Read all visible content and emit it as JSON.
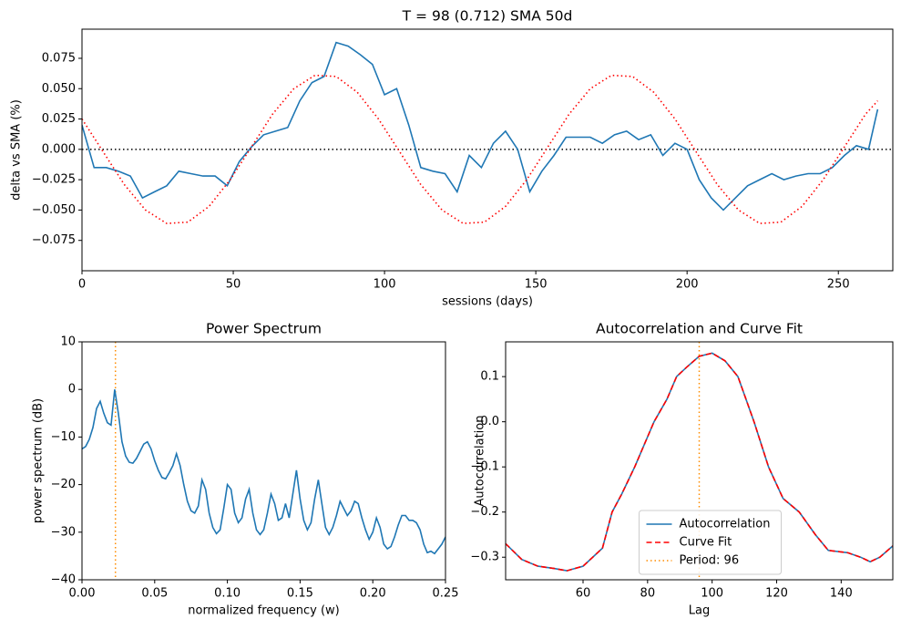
{
  "chart_data": [
    {
      "type": "line",
      "title": "T = 98 (0.712)      SMA 50d",
      "xlabel": "sessions (days)",
      "ylabel": "delta vs SMA (%)",
      "xlim": [
        0,
        268
      ],
      "ylim": [
        -0.1,
        0.099
      ],
      "xticks": [
        0,
        50,
        100,
        150,
        200,
        250
      ],
      "yticks": [
        {
          "value": -0.075,
          "label": "−0.075"
        },
        {
          "value": -0.05,
          "label": "−0.050"
        },
        {
          "value": -0.025,
          "label": "−0.025"
        },
        {
          "value": 0,
          "label": "0.000"
        },
        {
          "value": 0.025,
          "label": "0.025"
        },
        {
          "value": 0.05,
          "label": "0.050"
        },
        {
          "value": 0.075,
          "label": "0.075"
        }
      ],
      "hlines": [
        {
          "value": 0,
          "color": "#000000",
          "style": "dotted"
        }
      ],
      "series": [
        {
          "color": "#1f77b4",
          "style": "solid",
          "x": [
            0,
            4,
            8,
            12,
            16,
            20,
            24,
            28,
            32,
            36,
            40,
            44,
            48,
            52,
            56,
            60,
            64,
            68,
            72,
            76,
            80,
            84,
            88,
            92,
            96,
            100,
            104,
            108,
            112,
            116,
            120,
            124,
            128,
            132,
            136,
            140,
            144,
            148,
            152,
            156,
            160,
            164,
            168,
            172,
            176,
            180,
            184,
            188,
            192,
            196,
            200,
            204,
            208,
            212,
            216,
            220,
            224,
            228,
            232,
            236,
            240,
            244,
            248,
            252,
            256,
            260,
            263
          ],
          "values": [
            0.02,
            -0.015,
            -0.015,
            -0.018,
            -0.022,
            -0.04,
            -0.035,
            -0.03,
            -0.018,
            -0.02,
            -0.022,
            -0.022,
            -0.03,
            -0.01,
            0.002,
            0.012,
            0.015,
            0.018,
            0.04,
            0.055,
            0.06,
            0.088,
            0.085,
            0.078,
            0.07,
            0.045,
            0.05,
            0.02,
            -0.015,
            -0.018,
            -0.02,
            -0.035,
            -0.005,
            -0.015,
            0.005,
            0.015,
            0.0,
            -0.035,
            -0.018,
            -0.005,
            0.01,
            0.01,
            0.01,
            0.005,
            0.012,
            0.015,
            0.008,
            0.012,
            -0.005,
            0.005,
            0.0,
            -0.025,
            -0.04,
            -0.05,
            -0.04,
            -0.03,
            -0.025,
            -0.02,
            -0.025,
            -0.022,
            -0.02,
            -0.02,
            -0.015,
            -0.005,
            0.003,
            0.0,
            0.033
          ]
        },
        {
          "color": "#ff0000",
          "style": "dotted",
          "x": [
            0,
            7,
            14,
            21,
            28,
            35,
            42,
            49,
            56,
            63,
            70,
            77,
            84,
            91,
            98,
            105,
            112,
            119,
            126,
            133,
            140,
            147,
            154,
            161,
            168,
            175,
            182,
            189,
            196,
            203,
            210,
            217,
            224,
            231,
            238,
            245,
            252,
            259,
            263
          ],
          "values": [
            0.025,
            -0.002,
            -0.029,
            -0.05,
            -0.061,
            -0.06,
            -0.047,
            -0.025,
            0.002,
            0.029,
            0.05,
            0.061,
            0.06,
            0.047,
            0.025,
            -0.002,
            -0.029,
            -0.05,
            -0.061,
            -0.06,
            -0.047,
            -0.025,
            0.002,
            0.029,
            0.05,
            0.061,
            0.06,
            0.047,
            0.025,
            -0.002,
            -0.029,
            -0.05,
            -0.061,
            -0.06,
            -0.047,
            -0.025,
            0.002,
            0.029,
            0.04
          ]
        }
      ]
    },
    {
      "type": "line",
      "title": "Power Spectrum",
      "xlabel": "normalized frequency (w)",
      "ylabel": "power spectrum (dB)",
      "xlim": [
        0,
        0.25
      ],
      "ylim": [
        -40,
        10
      ],
      "xticks": [
        {
          "value": 0,
          "label": "0.00"
        },
        {
          "value": 0.05,
          "label": "0.05"
        },
        {
          "value": 0.1,
          "label": "0.10"
        },
        {
          "value": 0.15,
          "label": "0.15"
        },
        {
          "value": 0.2,
          "label": "0.20"
        },
        {
          "value": 0.25,
          "label": "0.25"
        }
      ],
      "yticks": [
        {
          "value": -40,
          "label": "−40"
        },
        {
          "value": -30,
          "label": "−30"
        },
        {
          "value": -20,
          "label": "−20"
        },
        {
          "value": -10,
          "label": "−10"
        },
        0,
        10
      ],
      "vlines": [
        {
          "value": 0.023,
          "color": "#ff8c00",
          "style": "dotted"
        }
      ],
      "series": [
        {
          "color": "#1f77b4",
          "style": "solid",
          "x": [
            0,
            0.0025,
            0.005,
            0.0075,
            0.01,
            0.0125,
            0.015,
            0.0175,
            0.02,
            0.0225,
            0.025,
            0.0275,
            0.03,
            0.0325,
            0.035,
            0.0375,
            0.04,
            0.0425,
            0.045,
            0.0475,
            0.05,
            0.0525,
            0.055,
            0.0575,
            0.06,
            0.0625,
            0.065,
            0.0675,
            0.07,
            0.0725,
            0.075,
            0.0775,
            0.08,
            0.0825,
            0.085,
            0.0875,
            0.09,
            0.0925,
            0.095,
            0.0975,
            0.1,
            0.1025,
            0.105,
            0.1075,
            0.11,
            0.1125,
            0.115,
            0.1175,
            0.12,
            0.1225,
            0.125,
            0.1275,
            0.13,
            0.1325,
            0.135,
            0.1375,
            0.14,
            0.1425,
            0.145,
            0.1475,
            0.15,
            0.1525,
            0.155,
            0.1575,
            0.16,
            0.1625,
            0.165,
            0.1675,
            0.17,
            0.1725,
            0.175,
            0.1775,
            0.18,
            0.1825,
            0.185,
            0.1875,
            0.19,
            0.1925,
            0.195,
            0.1975,
            0.2,
            0.2025,
            0.205,
            0.2075,
            0.21,
            0.2125,
            0.215,
            0.2175,
            0.22,
            0.2225,
            0.225,
            0.2275,
            0.23,
            0.2325,
            0.235,
            0.2375,
            0.24,
            0.2425,
            0.245,
            0.2475,
            0.25
          ],
          "values": [
            -12.5,
            -12,
            -10.5,
            -8,
            -4,
            -2.5,
            -5,
            -7,
            -7.5,
            0,
            -5,
            -11,
            -14,
            -15.3,
            -15.5,
            -14.5,
            -13,
            -11.5,
            -11,
            -12.5,
            -15,
            -17,
            -18.5,
            -18.8,
            -17.5,
            -16,
            -13.5,
            -16,
            -20,
            -23.5,
            -25.5,
            -26,
            -24.5,
            -19,
            -21,
            -26,
            -29,
            -30.3,
            -29.5,
            -25,
            -20,
            -21,
            -26,
            -28,
            -27,
            -23,
            -21,
            -26,
            -29.5,
            -30.5,
            -29.5,
            -26,
            -22,
            -24,
            -27.5,
            -27,
            -24,
            -27,
            -22,
            -17,
            -23,
            -27.5,
            -29.5,
            -28,
            -23,
            -19,
            -24,
            -29,
            -30.5,
            -29,
            -26.5,
            -23.5,
            -25,
            -26.5,
            -25.5,
            -23.5,
            -24,
            -27,
            -29.5,
            -31.5,
            -30,
            -27,
            -29,
            -32.5,
            -33.5,
            -33,
            -31,
            -28.5,
            -26.5,
            -26.5,
            -27.5,
            -27.5,
            -28,
            -29.5,
            -32.5,
            -34.3,
            -34,
            -34.5,
            -33.5,
            -32.5,
            -31
          ]
        }
      ]
    },
    {
      "type": "line",
      "title": "Autocorrelation and Curve Fit",
      "xlabel": "Lag",
      "ylabel": "Autocorrelation",
      "xlim": [
        36,
        156
      ],
      "ylim": [
        -0.35,
        0.177
      ],
      "xticks": [
        60,
        80,
        100,
        120,
        140
      ],
      "yticks": [
        {
          "value": -0.3,
          "label": "−0.3"
        },
        {
          "value": -0.2,
          "label": "−0.2"
        },
        {
          "value": -0.1,
          "label": "−0.1"
        },
        {
          "value": 0,
          "label": "0.0"
        },
        0.1
      ],
      "legend": "lower center",
      "vlines": [
        {
          "name": "Period: 96",
          "value": 96,
          "color": "#ff8c00",
          "style": "dotted"
        }
      ],
      "series": [
        {
          "name": "Autocorrelation",
          "color": "#1f77b4",
          "style": "solid",
          "x": [
            36,
            41,
            46,
            51,
            55,
            60,
            66,
            69,
            72,
            76,
            82,
            86,
            89,
            92,
            96,
            100,
            104,
            108,
            113,
            117.5,
            122,
            127,
            132,
            136,
            142,
            146,
            149,
            152,
            156
          ],
          "values": [
            -0.27,
            -0.305,
            -0.32,
            -0.325,
            -0.33,
            -0.32,
            -0.28,
            -0.2,
            -0.16,
            -0.1,
            0.0,
            0.05,
            0.1,
            0.12,
            0.145,
            0.152,
            0.135,
            0.1,
            0.0,
            -0.1,
            -0.17,
            -0.2,
            -0.25,
            -0.285,
            -0.29,
            -0.3,
            -0.31,
            -0.3,
            -0.275
          ]
        },
        {
          "name": "Curve Fit",
          "color": "#ff0000",
          "style": "dashed",
          "x": [
            36,
            41,
            46,
            51,
            55,
            60,
            66,
            69,
            72,
            76,
            82,
            86,
            89,
            92,
            96,
            100,
            104,
            108,
            113,
            117.5,
            122,
            127,
            132,
            136,
            142,
            146,
            149,
            152,
            156
          ],
          "values": [
            -0.27,
            -0.305,
            -0.32,
            -0.325,
            -0.33,
            -0.32,
            -0.28,
            -0.2,
            -0.16,
            -0.1,
            0.0,
            0.05,
            0.1,
            0.12,
            0.145,
            0.152,
            0.135,
            0.1,
            0.0,
            -0.1,
            -0.17,
            -0.2,
            -0.25,
            -0.285,
            -0.29,
            -0.3,
            -0.31,
            -0.3,
            -0.275
          ]
        }
      ]
    }
  ]
}
